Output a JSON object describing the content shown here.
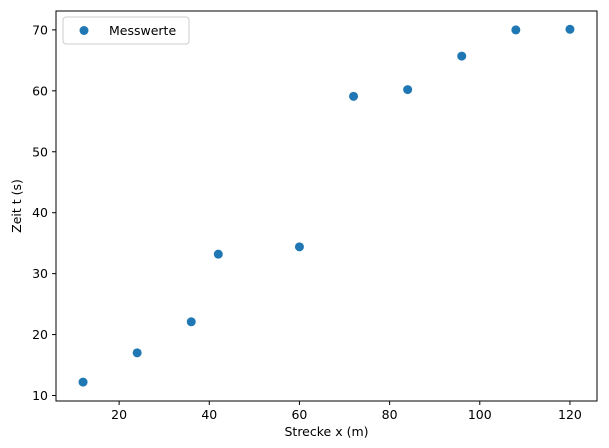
{
  "chart_data": {
    "type": "scatter",
    "title": "",
    "xlabel": "Strecke x (m)",
    "ylabel": "Zeit t (s)",
    "xlim": [
      6,
      126
    ],
    "ylim": [
      9.1,
      73.1
    ],
    "xticks": [
      20,
      40,
      60,
      80,
      100,
      120
    ],
    "yticks": [
      10,
      20,
      30,
      40,
      50,
      60,
      70
    ],
    "grid": false,
    "legend_position": "upper-left",
    "series": [
      {
        "name": "Messwerte",
        "color": "#1f77b4",
        "marker": "circle",
        "x": [
          12,
          24,
          36,
          42,
          60,
          72,
          84,
          96,
          108,
          120
        ],
        "y": [
          12.2,
          17.0,
          22.1,
          33.2,
          34.4,
          59.1,
          60.2,
          65.7,
          70.0,
          70.1
        ]
      }
    ]
  }
}
